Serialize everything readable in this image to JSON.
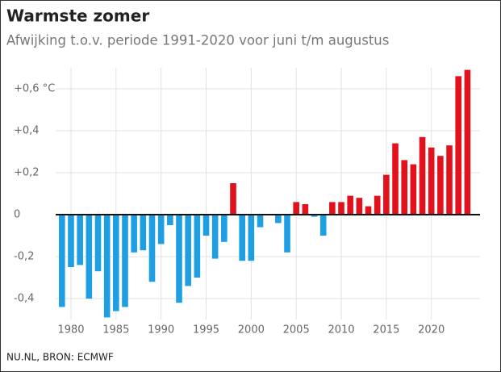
{
  "chart_data": {
    "type": "bar",
    "title": "Warmste zomer",
    "subtitle": "Afwijking t.o.v. periode 1991-2020 voor juni t/m augustus",
    "source": "NU.NL, BRON: ECMWF",
    "x": [
      1979,
      1980,
      1981,
      1982,
      1983,
      1984,
      1985,
      1986,
      1987,
      1988,
      1989,
      1990,
      1991,
      1992,
      1993,
      1994,
      1995,
      1996,
      1997,
      1998,
      1999,
      2000,
      2001,
      2002,
      2003,
      2004,
      2005,
      2006,
      2007,
      2008,
      2009,
      2010,
      2011,
      2012,
      2013,
      2014,
      2015,
      2016,
      2017,
      2018,
      2019,
      2020,
      2021,
      2022,
      2023,
      2024
    ],
    "values": [
      -0.44,
      -0.25,
      -0.24,
      -0.4,
      -0.27,
      -0.49,
      -0.46,
      -0.44,
      -0.18,
      -0.17,
      -0.32,
      -0.14,
      -0.05,
      -0.42,
      -0.34,
      -0.3,
      -0.1,
      -0.21,
      -0.13,
      0.15,
      -0.22,
      -0.22,
      -0.06,
      0,
      -0.04,
      -0.18,
      0.06,
      0.05,
      -0.01,
      -0.1,
      0.06,
      0.06,
      0.09,
      0.08,
      0.04,
      0.09,
      0.19,
      0.34,
      0.26,
      0.24,
      0.37,
      0.32,
      0.28,
      0.33,
      0.66,
      0.69
    ],
    "positive_color": "#e3111b",
    "negative_color": "#1e9fe3",
    "xlim": [
      1978.3,
      2025.4
    ],
    "xticks": [
      1980,
      1985,
      1990,
      1995,
      2000,
      2005,
      2010,
      2015,
      2020
    ],
    "ylim": [
      -0.5,
      0.7
    ],
    "yticks": [
      {
        "value": -0.4,
        "label": "-0,4"
      },
      {
        "value": -0.2,
        "label": "-0,2"
      },
      0,
      {
        "value": 0.2,
        "label": "+0,2"
      },
      {
        "value": 0.4,
        "label": "+0,4"
      },
      {
        "value": 0.6,
        "label": "+0,6 °C"
      }
    ],
    "grid": true
  }
}
